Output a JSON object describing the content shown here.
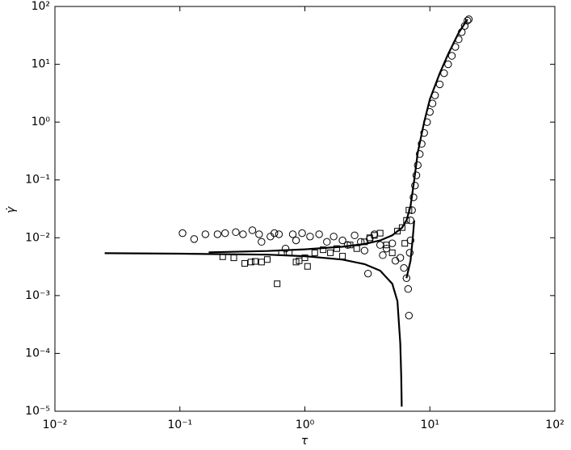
{
  "chart_data": {
    "type": "scatter",
    "log_x": true,
    "log_y": true,
    "x_label": "τ",
    "y_label": "γ̇",
    "xlim": [
      0.01,
      100
    ],
    "xticks": [
      {
        "value": 0.01,
        "label": "10⁻²"
      },
      {
        "value": 0.1,
        "label": "10⁻¹"
      },
      {
        "value": 1,
        "label": "10⁰"
      },
      {
        "value": 10,
        "label": "10¹"
      },
      {
        "value": 100,
        "label": "10²"
      }
    ],
    "ylim": [
      1e-05,
      100
    ],
    "yticks": [
      {
        "value": 1e-05,
        "label": "10⁻⁵"
      },
      {
        "value": 0.0001,
        "label": "10⁻⁴"
      },
      {
        "value": 0.001,
        "label": "10⁻³"
      },
      {
        "value": 0.01,
        "label": "10⁻²"
      },
      {
        "value": 0.1,
        "label": "10⁻¹"
      },
      {
        "value": 1,
        "label": "10⁰"
      },
      {
        "value": 10,
        "label": "10¹"
      },
      {
        "value": 100,
        "label": "10²"
      }
    ],
    "color": "#000000",
    "series": [
      {
        "marker": "circle",
        "x": [
          0.105,
          0.13,
          0.16,
          0.2,
          0.23,
          0.28,
          0.32,
          0.38,
          0.43,
          0.45,
          0.53,
          0.57,
          0.62,
          0.7,
          0.8,
          0.85,
          0.95,
          1.1,
          1.3,
          1.5,
          1.7,
          2,
          2.2,
          2.5,
          2.8,
          3,
          3.3,
          3.6,
          4,
          4.2,
          4.5,
          5,
          5.3,
          5.8,
          6.2,
          6.5,
          6.7,
          6.8,
          3.2,
          7,
          6.9,
          7,
          7.2,
          7.4,
          7.6,
          7.8,
          8,
          8.3,
          8.6,
          9,
          9.5,
          10,
          10.5,
          11,
          12,
          13,
          14,
          15,
          16,
          17,
          18,
          19,
          20,
          20.5
        ],
        "y": [
          0.012,
          0.0095,
          0.0115,
          0.0115,
          0.012,
          0.0125,
          0.0115,
          0.0135,
          0.0115,
          0.0085,
          0.0105,
          0.012,
          0.0115,
          0.0065,
          0.0115,
          0.009,
          0.012,
          0.0105,
          0.0115,
          0.0085,
          0.0105,
          0.009,
          0.0075,
          0.011,
          0.0085,
          0.006,
          0.0095,
          0.0115,
          0.0075,
          0.005,
          0.0065,
          0.008,
          0.004,
          0.0045,
          0.003,
          0.002,
          0.0013,
          0.00045,
          0.0024,
          0.009,
          0.0055,
          0.02,
          0.03,
          0.05,
          0.08,
          0.12,
          0.18,
          0.28,
          0.42,
          0.65,
          1,
          1.5,
          2.1,
          2.9,
          4.5,
          7,
          10,
          14,
          20,
          27,
          36,
          46,
          57,
          60
        ]
      },
      {
        "marker": "square",
        "x": [
          0.22,
          0.27,
          0.33,
          0.37,
          0.4,
          0.45,
          0.5,
          0.6,
          0.65,
          0.75,
          0.85,
          0.9,
          1,
          1.05,
          1.2,
          1.4,
          1.6,
          1.8,
          2,
          2.3,
          2.6,
          3,
          3.3,
          3.6,
          4,
          4.5,
          5,
          5.5,
          6,
          6.5,
          6.8,
          6.3
        ],
        "y": [
          0.0047,
          0.0045,
          0.0036,
          0.0038,
          0.0039,
          0.0038,
          0.0042,
          0.0016,
          0.0055,
          0.0055,
          0.0038,
          0.004,
          0.0045,
          0.0032,
          0.0055,
          0.0062,
          0.0055,
          0.0065,
          0.0048,
          0.0075,
          0.0065,
          0.0085,
          0.01,
          0.011,
          0.012,
          0.0075,
          0.0055,
          0.013,
          0.015,
          0.02,
          0.03,
          0.008
        ]
      },
      {
        "marker": "line",
        "x": [
          0.025,
          0.1,
          0.5,
          1,
          2,
          3,
          4,
          5,
          5.5,
          5.8,
          5.9,
          5.95
        ],
        "y": [
          0.0054,
          0.0053,
          0.0051,
          0.0048,
          0.0042,
          0.0035,
          0.0027,
          0.0016,
          0.0008,
          0.00015,
          4e-05,
          1.2e-05
        ]
      },
      {
        "marker": "line",
        "x": [
          0.17,
          0.5,
          1,
          2,
          3,
          4,
          5,
          6,
          6.5,
          7,
          7.5,
          8,
          9,
          10,
          12,
          14,
          17,
          20
        ],
        "y": [
          0.0056,
          0.0059,
          0.0063,
          0.007,
          0.0078,
          0.009,
          0.011,
          0.015,
          0.02,
          0.035,
          0.1,
          0.3,
          1,
          2.5,
          7,
          15,
          35,
          60
        ]
      },
      {
        "marker": "line",
        "x": [
          6.5,
          7,
          7.3,
          7.5
        ],
        "y": [
          0.002,
          0.004,
          0.01,
          0.02
        ]
      }
    ]
  }
}
